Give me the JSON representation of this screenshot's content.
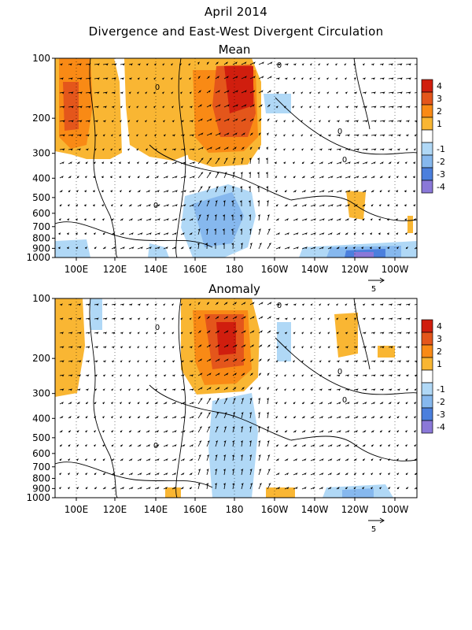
{
  "title": "April 2014",
  "subtitle": "Divergence and East-West Divergent Circulation",
  "colors": {
    "pos": [
      "#ffffff",
      "#f9b633",
      "#f98a15",
      "#e4561b",
      "#d01e0e"
    ],
    "neg": [
      "#ffffff",
      "#b0d8f6",
      "#86b8ee",
      "#4b7fdd",
      "#2c54d2"
    ],
    "extra_neg": "#8a78d8"
  },
  "chart_data": [
    {
      "type": "heatmap",
      "title": "Mean",
      "x_ticks": [
        "100E",
        "120E",
        "140E",
        "160E",
        "180",
        "160W",
        "140W",
        "120W",
        "100W"
      ],
      "y_ticks": [
        "100",
        "200",
        "300",
        "400",
        "500",
        "600",
        "700",
        "800",
        "900",
        "1000"
      ],
      "colorbar": [
        "4",
        "3",
        "2",
        "1",
        "-1",
        "-2",
        "-3",
        "-4"
      ],
      "vector_scale": "5",
      "contour_labels": [
        "0"
      ],
      "grid": true
    },
    {
      "type": "heatmap",
      "title": "Anomaly",
      "x_ticks": [
        "100E",
        "120E",
        "140E",
        "160E",
        "180",
        "160W",
        "140W",
        "120W",
        "100W"
      ],
      "y_ticks": [
        "100",
        "200",
        "300",
        "400",
        "500",
        "600",
        "700",
        "800",
        "900",
        "1000"
      ],
      "colorbar": [
        "4",
        "3",
        "2",
        "1",
        "-1",
        "-2",
        "-3",
        "-4"
      ],
      "vector_scale": "5",
      "contour_labels": [
        "0"
      ],
      "grid": true
    }
  ]
}
